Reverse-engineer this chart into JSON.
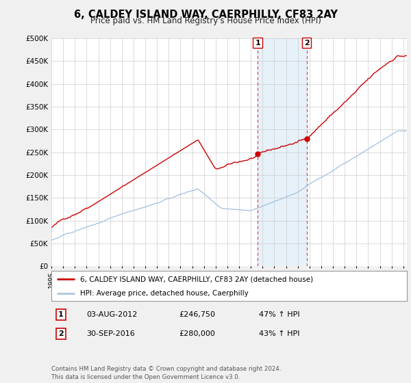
{
  "title": "6, CALDEY ISLAND WAY, CAERPHILLY, CF83 2AY",
  "subtitle": "Price paid vs. HM Land Registry's House Price Index (HPI)",
  "ylabel_ticks": [
    "£0",
    "£50K",
    "£100K",
    "£150K",
    "£200K",
    "£250K",
    "£300K",
    "£350K",
    "£400K",
    "£450K",
    "£500K"
  ],
  "ytick_vals": [
    0,
    50000,
    100000,
    150000,
    200000,
    250000,
    300000,
    350000,
    400000,
    450000,
    500000
  ],
  "ylim": [
    0,
    500000
  ],
  "xlim_start": 1995.0,
  "xlim_end": 2025.3,
  "hpi_color": "#aac4e0",
  "price_color": "#cc0000",
  "sale1_x": 2012.58,
  "sale1_y": 246750,
  "sale2_x": 2016.75,
  "sale2_y": 280000,
  "sale1_label": "03-AUG-2012",
  "sale1_price": "£246,750",
  "sale1_hpi": "47% ↑ HPI",
  "sale2_label": "30-SEP-2016",
  "sale2_price": "£280,000",
  "sale2_hpi": "43% ↑ HPI",
  "legend_line1": "6, CALDEY ISLAND WAY, CAERPHILLY, CF83 2AY (detached house)",
  "legend_line2": "HPI: Average price, detached house, Caerphilly",
  "footnote": "Contains HM Land Registry data © Crown copyright and database right 2024.\nThis data is licensed under the Open Government Licence v3.0.",
  "bg_color": "#f0f0f0",
  "plot_bg": "#ffffff",
  "grid_color": "#cccccc",
  "highlight_color": "#d6e8f7"
}
